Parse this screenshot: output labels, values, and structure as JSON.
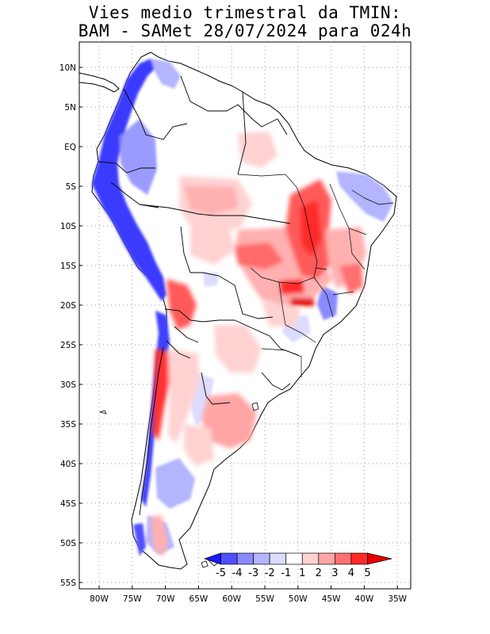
{
  "title_line1": "Vies medio trimestral da TMIN:",
  "title_line2": "BAM - SAMet 28/07/2024  para 024h",
  "lat_labels": [
    "10N",
    "5N",
    "EQ",
    "5S",
    "10S",
    "15S",
    "20S",
    "25S",
    "30S",
    "35S",
    "40S",
    "45S",
    "50S",
    "55S"
  ],
  "lon_labels": [
    "80W",
    "75W",
    "70W",
    "65W",
    "60W",
    "55W",
    "50W",
    "45W",
    "40W",
    "35W"
  ],
  "colorbar": {
    "labels": [
      "-5",
      "-4",
      "-3",
      "-2",
      "-1",
      "1",
      "2",
      "3",
      "4",
      "5"
    ],
    "colors": [
      "#1a1aff",
      "#5050ff",
      "#8a8aff",
      "#b4b4ff",
      "#dcdcff",
      "#ffffff",
      "#ffd2d2",
      "#ffa5a5",
      "#ff7070",
      "#ff2a2a",
      "#e60000"
    ]
  }
}
